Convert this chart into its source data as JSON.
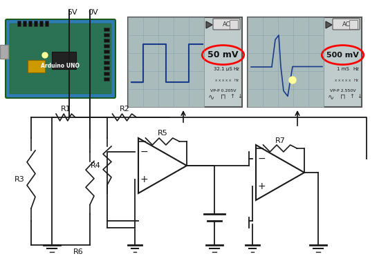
{
  "background_color": "#ffffff",
  "title": "",
  "label_5V": "5V",
  "label_0V": "0V",
  "label_R1": "R1",
  "label_R2": "R2",
  "label_R3": "R3",
  "label_R4": "R4",
  "label_R5": "R5",
  "label_R6": "R6",
  "label_R7": "R7",
  "label_osc1": "50 mV",
  "label_osc1_extra": "0.205V",
  "label_osc2": "500 mV",
  "label_osc2_extra": "2.550V",
  "arduino_color": "#2e7bb5",
  "osc_bg_color": "#b8c8c8",
  "osc_line_color": "#1a3a8a",
  "osc_highlight_color": "#ff0000",
  "circuit_line_color": "#1a1a1a",
  "resistor_color": "#1a1a1a",
  "opamp_color": "#1a1a1a"
}
